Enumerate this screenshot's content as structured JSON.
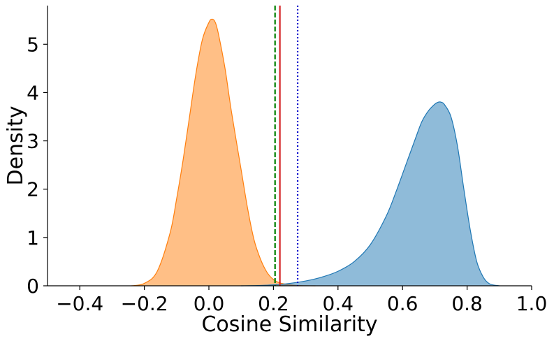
{
  "chart_data": {
    "type": "area",
    "title": "",
    "xlabel": "Cosine Similarity",
    "ylabel": "Density",
    "xlim": [
      -0.5,
      1.0
    ],
    "ylim": [
      0,
      5.8
    ],
    "xticks": [
      -0.4,
      -0.2,
      0.0,
      0.2,
      0.4,
      0.6,
      0.8,
      1.0
    ],
    "xtick_labels": [
      "−0.4",
      "−0.2",
      "0.0",
      "0.2",
      "0.4",
      "0.6",
      "0.8",
      "1.0"
    ],
    "yticks": [
      0,
      1,
      2,
      3,
      4,
      5
    ],
    "ytick_labels": [
      "0",
      "1",
      "2",
      "3",
      "4",
      "5"
    ],
    "grid": false,
    "legend": "none",
    "series": [
      {
        "color": "#ff7f0e",
        "fill_opacity": 0.5,
        "x": [
          -0.24,
          -0.2,
          -0.16,
          -0.12,
          -0.1,
          -0.08,
          -0.06,
          -0.04,
          -0.02,
          0.0,
          0.01,
          0.02,
          0.03,
          0.05,
          0.07,
          0.1,
          0.12,
          0.14,
          0.16,
          0.18,
          0.2,
          0.22,
          0.25,
          0.28,
          0.3,
          0.33
        ],
        "y": [
          0.0,
          0.05,
          0.3,
          1.1,
          1.8,
          2.6,
          3.5,
          4.4,
          5.1,
          5.45,
          5.52,
          5.45,
          5.2,
          4.5,
          3.6,
          2.4,
          1.6,
          0.95,
          0.55,
          0.28,
          0.13,
          0.06,
          0.02,
          0.005,
          0.002,
          0.0
        ]
      },
      {
        "color": "#1f77b4",
        "fill_opacity": 0.5,
        "x": [
          0.1,
          0.15,
          0.2,
          0.25,
          0.3,
          0.35,
          0.4,
          0.45,
          0.5,
          0.55,
          0.58,
          0.61,
          0.64,
          0.66,
          0.68,
          0.7,
          0.71,
          0.72,
          0.73,
          0.75,
          0.77,
          0.79,
          0.81,
          0.83,
          0.85,
          0.87,
          0.9
        ],
        "y": [
          0.0,
          0.005,
          0.02,
          0.05,
          0.1,
          0.18,
          0.3,
          0.5,
          0.85,
          1.45,
          1.95,
          2.5,
          3.05,
          3.4,
          3.62,
          3.76,
          3.8,
          3.8,
          3.75,
          3.5,
          2.9,
          2.0,
          1.15,
          0.5,
          0.18,
          0.04,
          0.0
        ]
      }
    ],
    "vlines": [
      {
        "x": 0.205,
        "color": "#008000",
        "style": "dashed"
      },
      {
        "x": 0.22,
        "color": "#d62728",
        "style": "solid"
      },
      {
        "x": 0.275,
        "color": "#0000cc",
        "style": "dotted"
      }
    ]
  }
}
